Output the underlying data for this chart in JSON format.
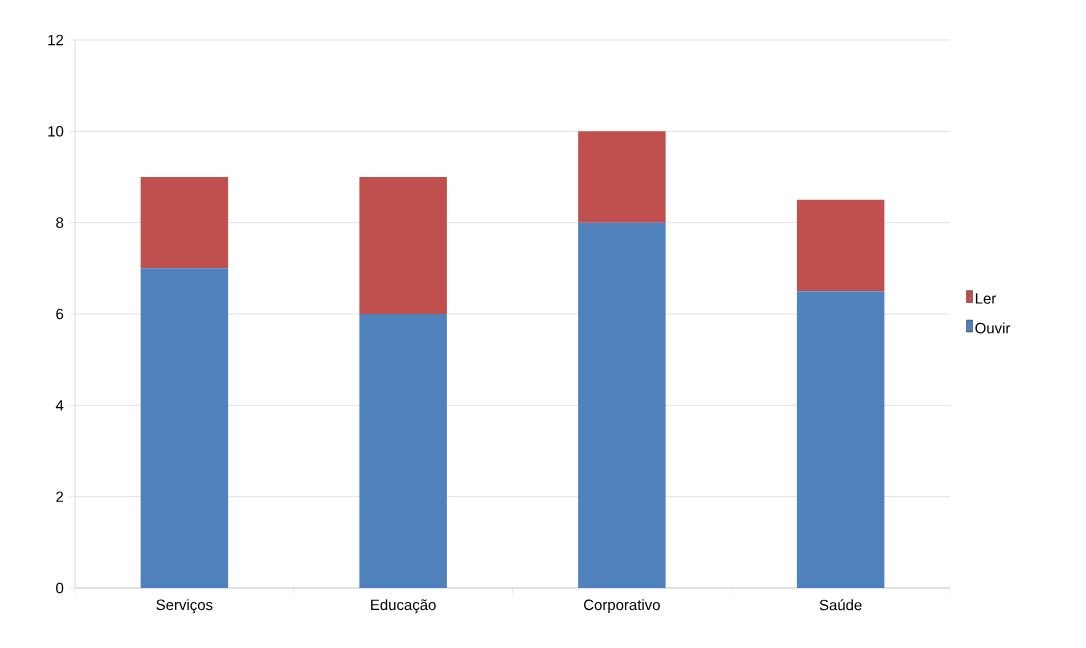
{
  "chart_data": {
    "type": "bar",
    "stacked": true,
    "categories": [
      "Serviços",
      "Educação",
      "Corporativo",
      "Saúde"
    ],
    "series": [
      {
        "name": "Ouvir",
        "color": "#4f81bd",
        "values": [
          7,
          6,
          8,
          6.5
        ]
      },
      {
        "name": "Ler",
        "color": "#c0504d",
        "values": [
          2,
          3,
          2,
          2
        ]
      }
    ],
    "ylim": [
      0,
      12
    ],
    "yticks": [
      0,
      2,
      4,
      6,
      8,
      10,
      12
    ],
    "grid": "y",
    "legend": "right"
  }
}
